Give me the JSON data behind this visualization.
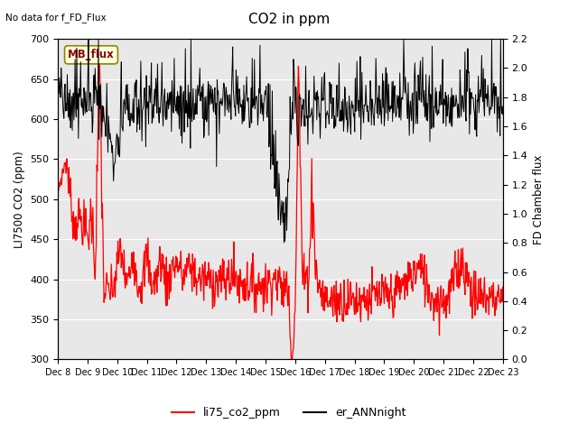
{
  "title": "CO2 in ppm",
  "top_left_text": "No data for f_FD_Flux",
  "ylabel_left": "LI7500 CO2 (ppm)",
  "ylabel_right": "FD Chamber flux",
  "ylim_left": [
    300,
    700
  ],
  "ylim_right": [
    0.0,
    2.2
  ],
  "yticks_left": [
    300,
    350,
    400,
    450,
    500,
    550,
    600,
    650,
    700
  ],
  "yticks_right": [
    0.0,
    0.2,
    0.4,
    0.6,
    0.8,
    1.0,
    1.2,
    1.4,
    1.6,
    1.8,
    2.0,
    2.2
  ],
  "xtick_labels": [
    "Dec 8",
    "Dec 9",
    "Dec 10",
    "Dec 11",
    "Dec 12",
    "Dec 13",
    "Dec 14",
    "Dec 15",
    "Dec 16",
    "Dec 17",
    "Dec 18",
    "Dec 19",
    "Dec 20",
    "Dec 21",
    "Dec 22",
    "Dec 23"
  ],
  "legend_items": [
    {
      "label": "li75_co2_ppm",
      "color": "red",
      "lw": 1.5
    },
    {
      "label": "er_ANNnight",
      "color": "black",
      "lw": 1.5
    }
  ],
  "annotation_box": {
    "text": "MB_flux"
  },
  "bg_color": "#e8e8e8",
  "line1_color": "red",
  "line2_color": "black"
}
